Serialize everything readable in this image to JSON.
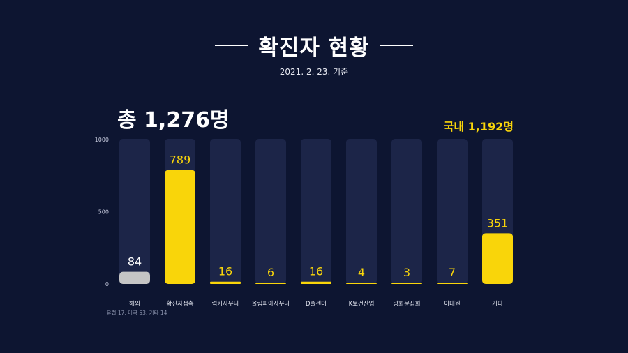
{
  "header": {
    "title": "확진자 현황",
    "date": "2021. 2. 23. 기준"
  },
  "summary": {
    "total": "총  1,276명",
    "domestic": "국내  1,192명"
  },
  "notes": {
    "overseas_breakdown": "유럽 17, 미국 53, 기타 14"
  },
  "colors": {
    "background": "#0d1531",
    "track": "#1c2548",
    "highlight": "#f9d50a",
    "overseas": "#c5c5c5"
  },
  "chart_data": {
    "type": "bar",
    "title": "",
    "xlabel": "",
    "ylabel": "",
    "ylim": [
      0,
      1000
    ],
    "yticks": [
      0,
      500,
      1000
    ],
    "categories": [
      "해외",
      "확진자접촉",
      "럭키사우나",
      "올림피아사우나",
      "D플센터",
      "K보건산업",
      "광화문집회",
      "이태원",
      "기타"
    ],
    "values": [
      84,
      789,
      16,
      6,
      16,
      4,
      3,
      7,
      351
    ],
    "bar_colors": [
      "#c5c5c5",
      "#f9d50a",
      "#f9d50a",
      "#f9d50a",
      "#f9d50a",
      "#f9d50a",
      "#f9d50a",
      "#f9d50a",
      "#f9d50a"
    ],
    "grid": false,
    "legend": "none"
  }
}
